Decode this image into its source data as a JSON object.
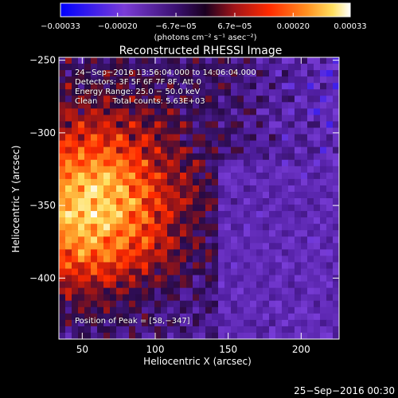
{
  "chart_data": {
    "type": "heatmap",
    "title": "Reconstructed RHESSI Image",
    "xlabel": "Heliocentric X (arcsec)",
    "ylabel": "Heliocentric Y (arcsec)",
    "xlim": [
      34,
      226
    ],
    "ylim": [
      -442,
      -248
    ],
    "x_ticks": [
      50,
      100,
      150,
      200
    ],
    "x_tick_labels": [
      "50",
      "100",
      "150",
      "200"
    ],
    "y_ticks": [
      -250,
      -300,
      -350,
      -400
    ],
    "y_tick_labels": [
      "−250",
      "−300",
      "−350",
      "−400"
    ],
    "colorbar": {
      "range": [
        -0.00033,
        0.00033
      ],
      "ticks": [
        -0.00033,
        -0.0002,
        -6.7e-05,
        6.7e-05,
        0.0002,
        0.00033
      ],
      "tick_labels": [
        "−0.00033",
        "−0.00020",
        "−6.7e−05",
        "6.7e−05",
        "0.00020",
        "0.00033"
      ],
      "unit_label": "(photons cm⁻² s⁻¹ asec⁻²)"
    },
    "peak_position": [
      58,
      -347
    ],
    "annotations": [
      "24−Sep−2016 13:56:04.000 to 14:06:04.000",
      "Detectors: 3F 5F 6F 7F 8F, Att 0",
      "Energy Range: 25.0 − 50.0 keV",
      "Clean      Total counts: 5.63E+03"
    ],
    "peak_label": "Position of Peak = [58,−347]",
    "footer_date": "25−Sep−2016 00:30"
  },
  "colors": {
    "background": "#000000",
    "foreground": "#ffffff",
    "colormap": [
      "#0000ff",
      "#7a3cd6",
      "#5a22a8",
      "#1a0030",
      "#a01418",
      "#ff2a00",
      "#ff9020",
      "#ffe060",
      "#ffffff"
    ]
  }
}
